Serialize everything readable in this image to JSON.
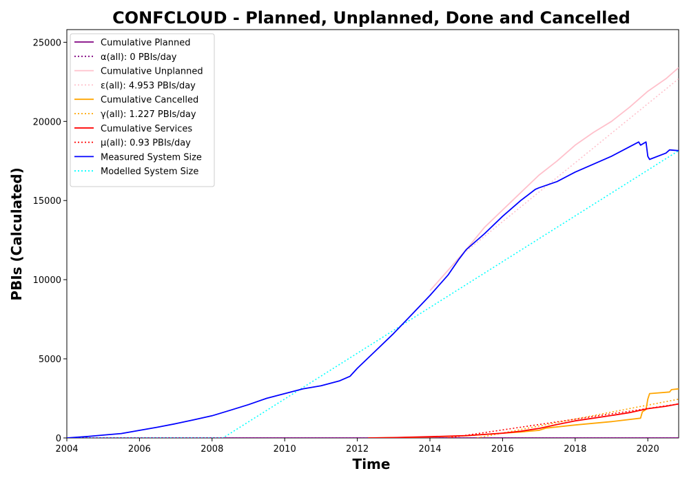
{
  "chart_data": {
    "type": "line",
    "title": "CONFCLOUD - Planned, Unplanned, Done  and Cancelled",
    "xlabel": "Time",
    "ylabel": "PBIs (Calculated)",
    "xlim": [
      2004.0,
      2020.85
    ],
    "ylim": [
      0,
      25800
    ],
    "x_ticks": [
      2004,
      2006,
      2008,
      2010,
      2012,
      2014,
      2016,
      2018,
      2020
    ],
    "y_ticks": [
      0,
      5000,
      10000,
      15000,
      20000,
      25000
    ],
    "grid": false,
    "legend_position": "top-left",
    "series": [
      {
        "name": "Cumulative Planned",
        "color": "#800080",
        "style": "solid",
        "x": [
          2004.0,
          2020.85
        ],
        "y": [
          0,
          0
        ]
      },
      {
        "name": "α(all): 0 PBIs/day",
        "color": "#800080",
        "style": "dotted",
        "x": [
          2004.0,
          2020.85
        ],
        "y": [
          0,
          0
        ]
      },
      {
        "name": "Cumulative Unplanned",
        "color": "#ffc0cb",
        "style": "solid",
        "x": [
          2014.0,
          2014.5,
          2015.0,
          2015.5,
          2016.0,
          2016.5,
          2017.0,
          2017.5,
          2018.0,
          2018.5,
          2019.0,
          2019.5,
          2020.0,
          2020.5,
          2020.85
        ],
        "y": [
          9300,
          10600,
          11900,
          13300,
          14400,
          15500,
          16600,
          17500,
          18500,
          19300,
          20000,
          20900,
          21900,
          22700,
          23400
        ]
      },
      {
        "name": "ε(all): 4.953 PBIs/day",
        "color": "#ffc0cb",
        "style": "dotted",
        "x": [
          2015.0,
          2020.85
        ],
        "y": [
          11800,
          22700
        ]
      },
      {
        "name": "Cumulative Cancelled",
        "color": "#ffa500",
        "style": "solid",
        "x": [
          2012.3,
          2013.0,
          2014.0,
          2015.0,
          2016.0,
          2016.5,
          2017.0,
          2017.2,
          2018.0,
          2019.0,
          2019.8,
          2019.85,
          2019.95,
          2020.0,
          2020.05,
          2020.6,
          2020.65,
          2020.85
        ],
        "y": [
          0,
          20,
          60,
          140,
          300,
          380,
          480,
          620,
          820,
          1030,
          1250,
          1650,
          1800,
          2450,
          2800,
          2900,
          3050,
          3100
        ]
      },
      {
        "name": "γ(all): 1.227 PBIs/day",
        "color": "#ffa500",
        "style": "dotted",
        "x": [
          2015.3,
          2020.85
        ],
        "y": [
          0,
          2450
        ]
      },
      {
        "name": "Cumulative Services",
        "color": "#ff0000",
        "style": "solid",
        "x": [
          2012.3,
          2013.0,
          2014.0,
          2015.0,
          2016.0,
          2016.5,
          2017.0,
          2017.5,
          2018.0,
          2018.5,
          2019.0,
          2019.5,
          2020.0,
          2020.5,
          2020.85
        ],
        "y": [
          0,
          20,
          80,
          150,
          300,
          420,
          600,
          850,
          1080,
          1250,
          1420,
          1600,
          1850,
          2000,
          2150
        ]
      },
      {
        "name": "μ(all): 0.93 PBIs/day",
        "color": "#ff0000",
        "style": "dotted",
        "x": [
          2014.5,
          2020.85
        ],
        "y": [
          0,
          2150
        ]
      },
      {
        "name": "Measured System Size",
        "color": "#0000ff",
        "style": "solid",
        "x": [
          2004.0,
          2004.5,
          2005.0,
          2005.5,
          2006.0,
          2006.5,
          2007.0,
          2007.5,
          2008.0,
          2008.5,
          2009.0,
          2009.5,
          2010.0,
          2010.5,
          2011.0,
          2011.5,
          2011.8,
          2012.0,
          2012.5,
          2013.0,
          2013.5,
          2014.0,
          2014.5,
          2014.8,
          2015.0,
          2015.5,
          2016.0,
          2016.5,
          2016.9,
          2017.0,
          2017.5,
          2018.0,
          2018.5,
          2019.0,
          2019.5,
          2019.75,
          2019.8,
          2019.95,
          2020.0,
          2020.05,
          2020.5,
          2020.6,
          2020.85
        ],
        "y": [
          0,
          80,
          180,
          280,
          480,
          680,
          900,
          1150,
          1400,
          1750,
          2100,
          2500,
          2800,
          3100,
          3300,
          3600,
          3900,
          4400,
          5500,
          6600,
          7800,
          9000,
          10300,
          11300,
          11900,
          12900,
          14000,
          15000,
          15700,
          15800,
          16200,
          16800,
          17300,
          17800,
          18400,
          18700,
          18500,
          18700,
          17800,
          17600,
          18000,
          18200,
          18150
        ]
      },
      {
        "name": "Modelled System Size",
        "color": "#00ffff",
        "style": "dotted",
        "x": [
          2004.0,
          2008.3,
          2020.85
        ],
        "y": [
          0,
          0,
          18150
        ]
      }
    ]
  }
}
